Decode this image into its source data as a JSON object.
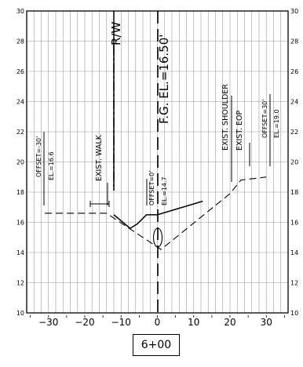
{
  "chart_data": {
    "type": "line",
    "xlim": [
      -36,
      36
    ],
    "ylim": [
      10,
      30
    ],
    "x_ticks": [
      -30,
      -20,
      -10,
      0,
      10,
      20,
      30
    ],
    "y_ticks": [
      10,
      12,
      14,
      16,
      18,
      20,
      22,
      24,
      26,
      28,
      30
    ],
    "grid": true,
    "series": [
      {
        "style": "solid",
        "points": [
          [
            -12,
            16.5
          ],
          [
            -7.5,
            15.6
          ],
          [
            -5.5,
            15.9
          ],
          [
            -3,
            16.5
          ],
          [
            0,
            16.5
          ],
          [
            12.5,
            17.4
          ]
        ]
      },
      {
        "style": "dashed",
        "points": [
          [
            -31,
            16.6
          ],
          [
            -14,
            16.6
          ],
          [
            1,
            14.2
          ],
          [
            20,
            17.9
          ],
          [
            23,
            18.8
          ],
          [
            30,
            19.0
          ]
        ]
      }
    ],
    "markers": [
      {
        "name": "ellipse",
        "x": 0,
        "y": 15.0
      },
      {
        "name": "walk-tie",
        "x": -14,
        "y": 17.2
      }
    ]
  },
  "labels": {
    "row_width": "R/W",
    "fg": "F.G.  EL.=16.50'",
    "exist_walk": "EXIST. WALK",
    "offset_left": "OFFSET=-30'",
    "el_left": "EL.=16.6",
    "offset_center": "OFFSET=0'",
    "el_center": "EL.=14.7",
    "exist_shoulder": "EXIST. SHOULDER",
    "exist_eop": "EXIST. EOP",
    "offset_right": "OFFSET=30'",
    "el_right": "EL.=19.0"
  },
  "station": "6+00"
}
